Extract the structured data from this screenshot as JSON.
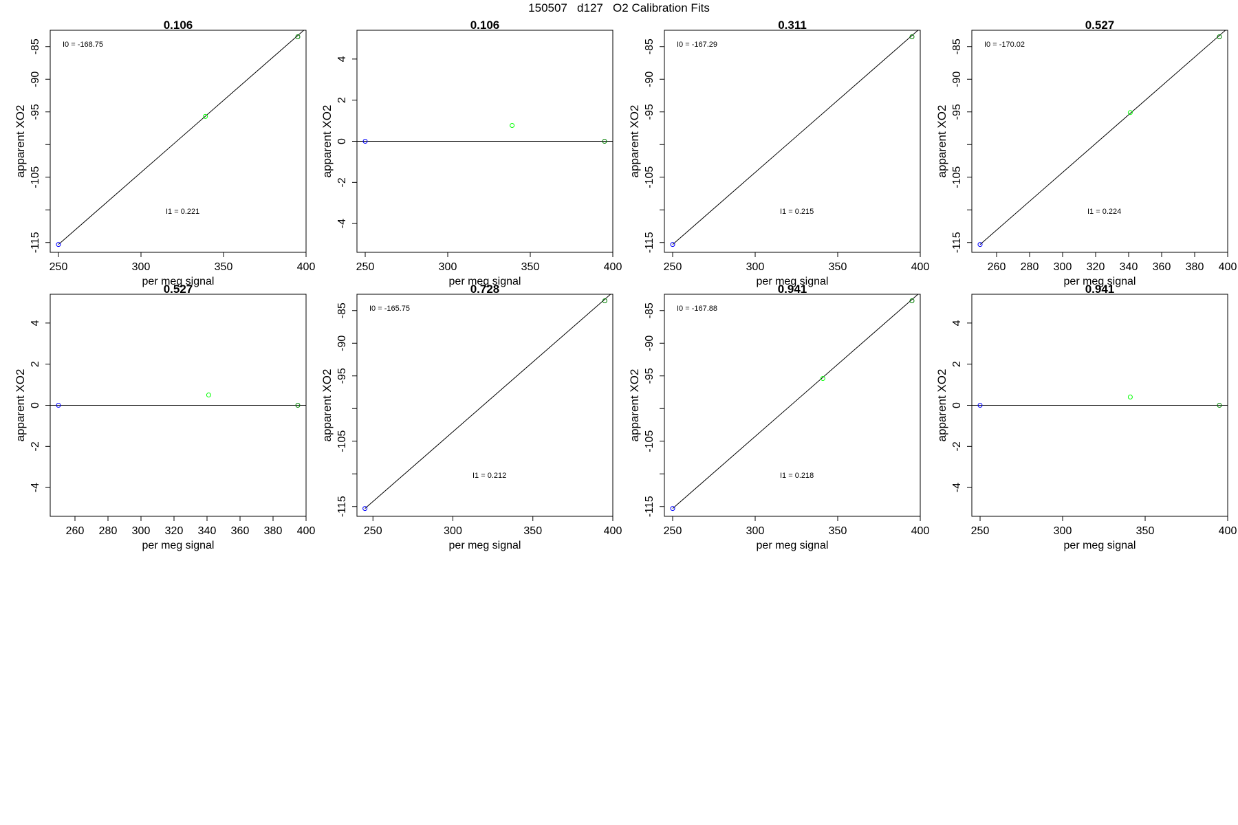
{
  "figure_title": "150507   d127   O2 Calibration Fits",
  "chart_data": [
    {
      "type": "scatter",
      "title": "0.106",
      "xlabel": "per meg signal",
      "ylabel": "apparent XO2",
      "xlim": [
        245,
        400
      ],
      "ylim": [
        -116.5,
        -82.5
      ],
      "x_ticks": [
        250,
        300,
        350,
        400
      ],
      "y_ticks": [
        -115,
        -105,
        -95,
        -90,
        -85
      ],
      "y_tick_marks": [
        -115,
        -110,
        -105,
        -100,
        -95,
        -90,
        -85
      ],
      "fit_line": {
        "x0": 250,
        "y0": -115.3,
        "x1": 400,
        "y1": -82.2
      },
      "points": [
        {
          "x": 250,
          "y": -115.3,
          "color": "#0000ff"
        },
        {
          "x": 339,
          "y": -95.7,
          "color": "#00ff00"
        },
        {
          "x": 395,
          "y": -83.5,
          "color": "#008000"
        }
      ],
      "annotations": [
        {
          "text": "I0 =  -168.75",
          "pos": "top-left"
        },
        {
          "text": "I1 =  0.221",
          "pos": "middle-right"
        }
      ]
    },
    {
      "type": "scatter",
      "title": "0.106",
      "xlabel": "per meg signal",
      "ylabel": "apparent XO2",
      "xlim": [
        245,
        400
      ],
      "ylim": [
        -5.4,
        5.4
      ],
      "x_ticks": [
        250,
        300,
        350,
        400
      ],
      "y_ticks": [
        -4,
        -2,
        0,
        2,
        4
      ],
      "fit_line": {
        "x0": 245,
        "y0": 0,
        "x1": 400,
        "y1": 0
      },
      "points": [
        {
          "x": 250,
          "y": 0,
          "color": "#0000ff"
        },
        {
          "x": 339,
          "y": 0.77,
          "color": "#00ff00"
        },
        {
          "x": 395,
          "y": 0,
          "color": "#008000"
        }
      ],
      "annotations": []
    },
    {
      "type": "scatter",
      "title": "0.311",
      "xlabel": "per meg signal",
      "ylabel": "apparent XO2",
      "xlim": [
        245,
        400
      ],
      "ylim": [
        -116.5,
        -82.5
      ],
      "x_ticks": [
        250,
        300,
        350,
        400
      ],
      "y_ticks": [
        -115,
        -105,
        -95,
        -90,
        -85
      ],
      "y_tick_marks": [
        -115,
        -110,
        -105,
        -100,
        -95,
        -90,
        -85
      ],
      "fit_line": {
        "x0": 250,
        "y0": -115.3,
        "x1": 400,
        "y1": -82.2
      },
      "points": [
        {
          "x": 250,
          "y": -115.3,
          "color": "#0000ff"
        },
        {
          "x": 395,
          "y": -83.5,
          "color": "#008000"
        }
      ],
      "annotations": [
        {
          "text": "I0 =  -167.29",
          "pos": "top-left"
        },
        {
          "text": "I1 =  0.215",
          "pos": "middle-right"
        }
      ]
    },
    {
      "type": "scatter",
      "title": "0.527",
      "xlabel": "per meg signal",
      "ylabel": "apparent XO2",
      "xlim": [
        245,
        400
      ],
      "ylim": [
        -116.5,
        -82.5
      ],
      "x_ticks": [
        260,
        280,
        300,
        320,
        340,
        360,
        380,
        400
      ],
      "y_ticks": [
        -115,
        -105,
        -95,
        -90,
        -85
      ],
      "y_tick_marks": [
        -115,
        -110,
        -105,
        -100,
        -95,
        -90,
        -85
      ],
      "fit_line": {
        "x0": 250,
        "y0": -115.3,
        "x1": 400,
        "y1": -82.2
      },
      "points": [
        {
          "x": 250,
          "y": -115.3,
          "color": "#0000ff"
        },
        {
          "x": 341,
          "y": -95.1,
          "color": "#00ff00"
        },
        {
          "x": 395,
          "y": -83.5,
          "color": "#008000"
        }
      ],
      "annotations": [
        {
          "text": "I0 =  -170.02",
          "pos": "top-left"
        },
        {
          "text": "I1 =  0.224",
          "pos": "middle-right"
        }
      ]
    },
    {
      "type": "scatter",
      "title": "0.527",
      "xlabel": "per meg signal",
      "ylabel": "apparent XO2",
      "xlim": [
        245,
        400
      ],
      "ylim": [
        -5.4,
        5.4
      ],
      "x_ticks": [
        260,
        280,
        300,
        320,
        340,
        360,
        380,
        400
      ],
      "y_ticks": [
        -4,
        -2,
        0,
        2,
        4
      ],
      "fit_line": {
        "x0": 245,
        "y0": 0,
        "x1": 400,
        "y1": 0
      },
      "points": [
        {
          "x": 250,
          "y": 0,
          "color": "#0000ff"
        },
        {
          "x": 341,
          "y": 0.5,
          "color": "#00ff00"
        },
        {
          "x": 395,
          "y": 0,
          "color": "#008000"
        }
      ],
      "annotations": []
    },
    {
      "type": "scatter",
      "title": "0.728",
      "xlabel": "per meg signal",
      "ylabel": "apparent XO2",
      "xlim": [
        240,
        400
      ],
      "ylim": [
        -116.5,
        -82.5
      ],
      "x_ticks": [
        250,
        300,
        350,
        400
      ],
      "y_ticks": [
        -115,
        -105,
        -95,
        -90,
        -85
      ],
      "y_tick_marks": [
        -115,
        -110,
        -105,
        -100,
        -95,
        -90,
        -85
      ],
      "fit_line": {
        "x0": 245,
        "y0": -115.3,
        "x1": 400,
        "y1": -82.2
      },
      "points": [
        {
          "x": 245,
          "y": -115.3,
          "color": "#0000ff"
        },
        {
          "x": 395,
          "y": -83.5,
          "color": "#008000"
        }
      ],
      "annotations": [
        {
          "text": "I0 =  -165.75",
          "pos": "top-left"
        },
        {
          "text": "I1 =  0.212",
          "pos": "middle-right"
        }
      ]
    },
    {
      "type": "scatter",
      "title": "0.941",
      "xlabel": "per meg signal",
      "ylabel": "apparent XO2",
      "xlim": [
        245,
        400
      ],
      "ylim": [
        -116.5,
        -82.5
      ],
      "x_ticks": [
        250,
        300,
        350,
        400
      ],
      "y_ticks": [
        -115,
        -105,
        -95,
        -90,
        -85
      ],
      "y_tick_marks": [
        -115,
        -110,
        -105,
        -100,
        -95,
        -90,
        -85
      ],
      "fit_line": {
        "x0": 250,
        "y0": -115.3,
        "x1": 400,
        "y1": -82.2
      },
      "points": [
        {
          "x": 250,
          "y": -115.3,
          "color": "#0000ff"
        },
        {
          "x": 341,
          "y": -95.4,
          "color": "#00ff00"
        },
        {
          "x": 395,
          "y": -83.5,
          "color": "#008000"
        }
      ],
      "annotations": [
        {
          "text": "I0 =  -167.88",
          "pos": "top-left"
        },
        {
          "text": "I1 =  0.218",
          "pos": "middle-right"
        }
      ]
    },
    {
      "type": "scatter",
      "title": "0.941",
      "xlabel": "per meg signal",
      "ylabel": "apparent XO2",
      "xlim": [
        245,
        400
      ],
      "ylim": [
        -5.4,
        5.4
      ],
      "x_ticks": [
        250,
        300,
        350,
        400
      ],
      "y_ticks": [
        -4,
        -2,
        0,
        2,
        4
      ],
      "fit_line": {
        "x0": 245,
        "y0": 0,
        "x1": 400,
        "y1": 0
      },
      "points": [
        {
          "x": 250,
          "y": 0,
          "color": "#0000ff"
        },
        {
          "x": 341,
          "y": 0.4,
          "color": "#00ff00"
        },
        {
          "x": 395,
          "y": 0,
          "color": "#008000"
        }
      ],
      "annotations": []
    }
  ]
}
